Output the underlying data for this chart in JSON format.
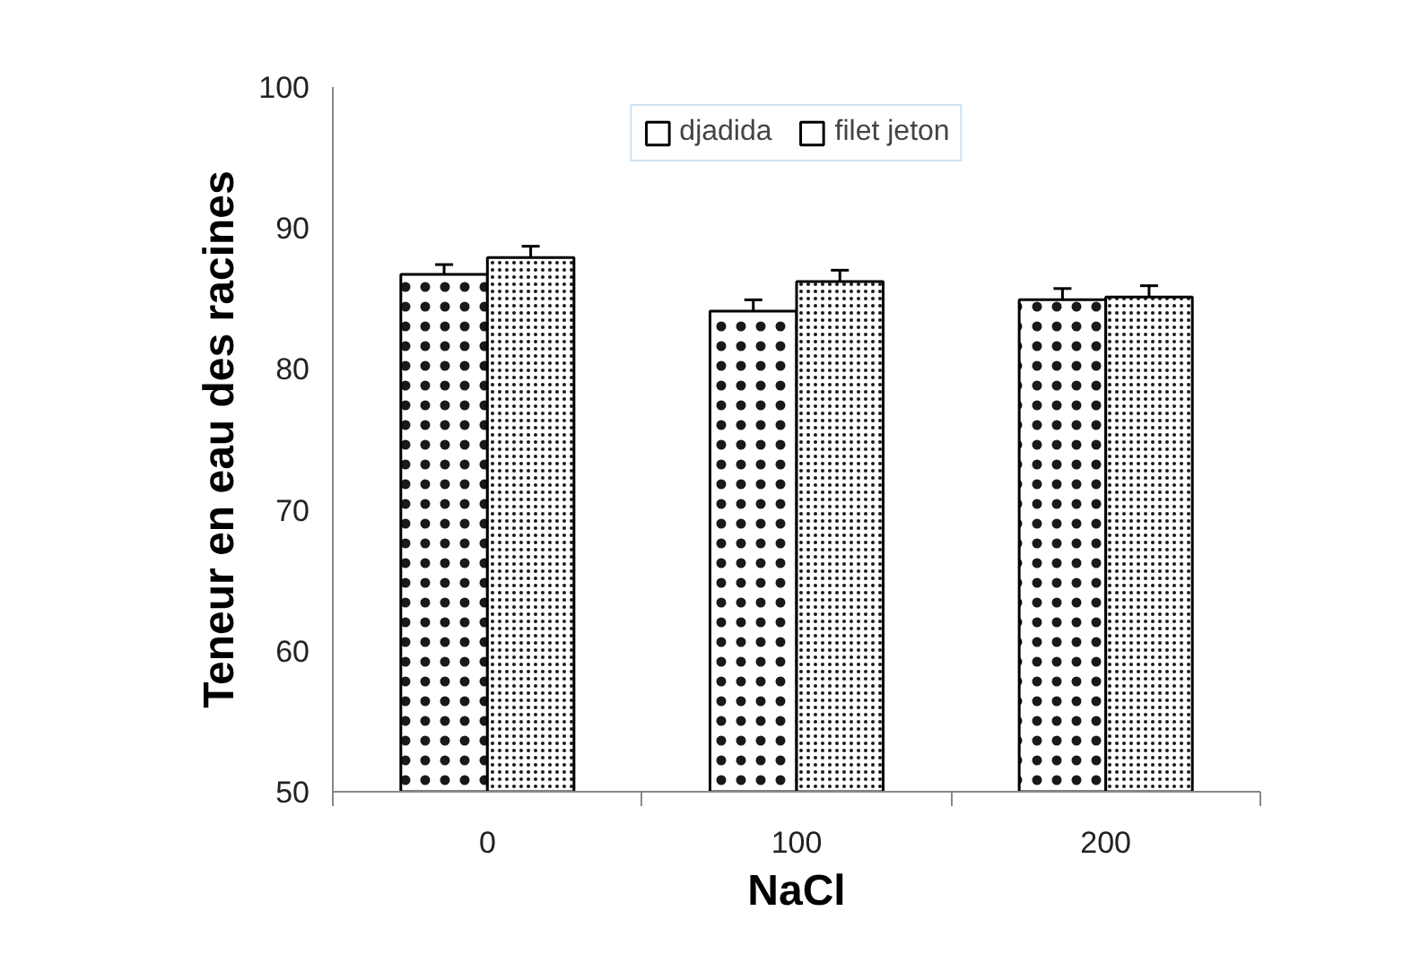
{
  "chart_data": {
    "type": "bar",
    "xlabel": "NaCl",
    "ylabel": "Teneur en eau des racines",
    "categories": [
      "0",
      "100",
      "200"
    ],
    "series": [
      {
        "name": "djadida",
        "color": "#ffffff",
        "values": [
          86.7,
          84.1,
          84.9
        ],
        "errors": [
          0.7,
          0.8,
          0.8
        ]
      },
      {
        "name": "filet jeton",
        "color": "#ffffff",
        "values": [
          87.9,
          86.2,
          85.1
        ],
        "errors": [
          0.8,
          0.8,
          0.8
        ]
      }
    ],
    "ylim": [
      50,
      100
    ],
    "yticks": [
      50,
      60,
      70,
      80,
      90,
      100
    ],
    "grid": false,
    "legend": "top"
  }
}
